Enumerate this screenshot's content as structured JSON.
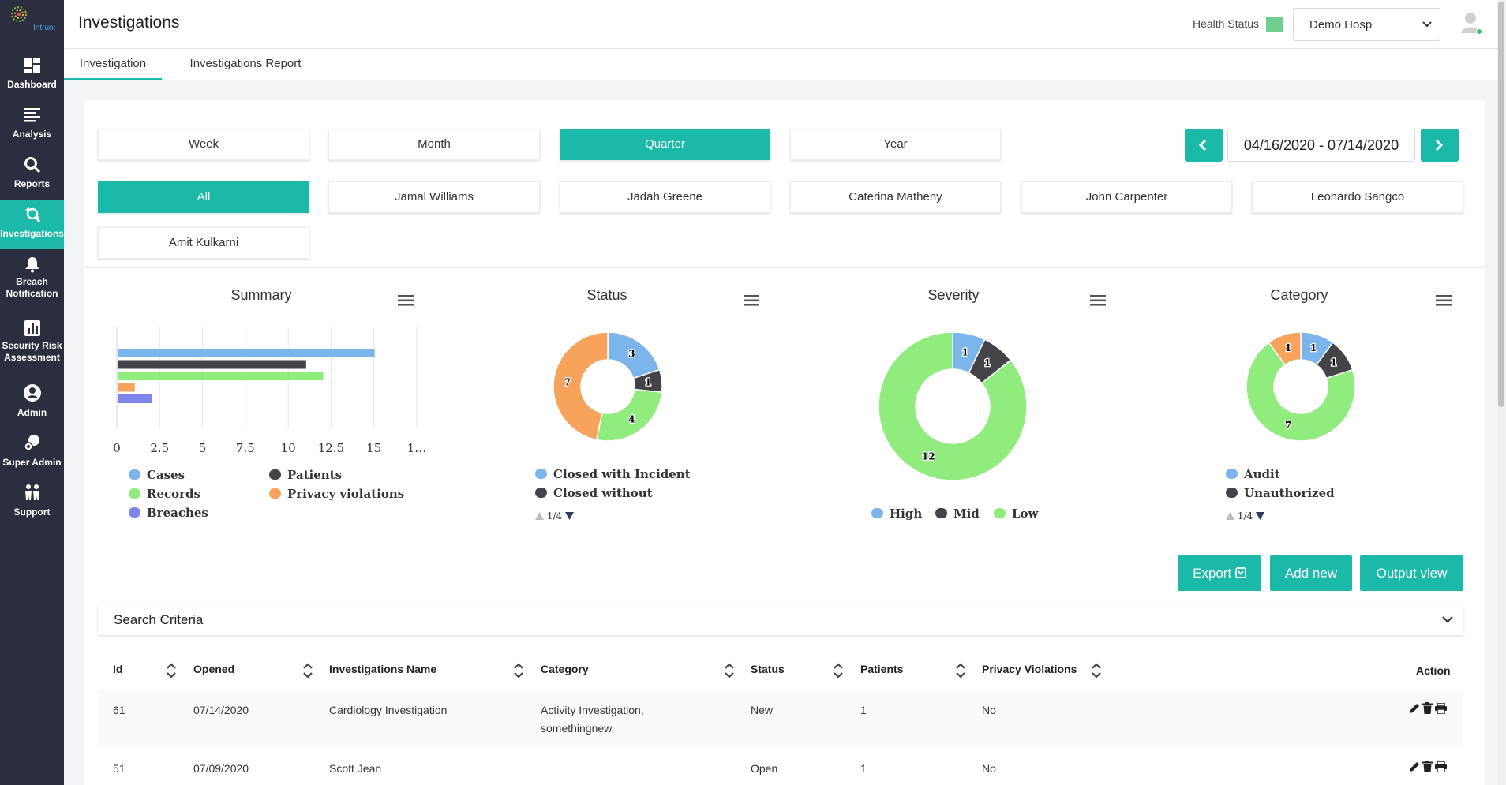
{
  "sidebar": {
    "logo_text": "Intruno",
    "items": [
      {
        "label": "Dashboard"
      },
      {
        "label": "Analysis"
      },
      {
        "label": "Reports"
      },
      {
        "label": "Investigations"
      },
      {
        "label": "Breach Notification"
      },
      {
        "label": "Security Risk Assessment"
      },
      {
        "label": "Admin"
      },
      {
        "label": "Super Admin"
      },
      {
        "label": "Support"
      }
    ]
  },
  "header": {
    "title": "Investigations",
    "health_label": "Health Status",
    "health_color": "#6fcf8f",
    "hospital": "Demo Hosp"
  },
  "tabs": [
    {
      "label": "Investigation",
      "active": true
    },
    {
      "label": "Investigations Report",
      "active": false
    }
  ],
  "periods": [
    "Week",
    "Month",
    "Quarter",
    "Year"
  ],
  "active_period": "Quarter",
  "date_range": "04/16/2020 - 07/14/2020",
  "people": [
    "All",
    "Jamal Williams",
    "Jadah Greene",
    "Caterina Matheny",
    "John Carpenter",
    "Leonardo Sangco",
    "Amit Kulkarni"
  ],
  "active_person": "All",
  "accent": "#1ab9a8",
  "chart_data": [
    {
      "type": "bar",
      "title": "Summary",
      "orientation": "horizontal",
      "categories": [
        "Cases",
        "Patients",
        "Records",
        "Privacy violations",
        "Breaches"
      ],
      "values": [
        15,
        11,
        12,
        1,
        2
      ],
      "colors": [
        "#7cb5ec",
        "#434348",
        "#90ed7d",
        "#f7a35c",
        "#8085e9"
      ],
      "xticks": [
        "0",
        "2.5",
        "5",
        "7.5",
        "10",
        "12.5",
        "15",
        "1…"
      ],
      "xlim": [
        0,
        17.5
      ]
    },
    {
      "type": "pie",
      "title": "Status",
      "donut": true,
      "labels": [
        "Closed with Incident",
        "Closed without Incident",
        "",
        ""
      ],
      "values": [
        3,
        1,
        4,
        7
      ],
      "colors": [
        "#7cb5ec",
        "#434348",
        "#90ed7d",
        "#f7a35c"
      ],
      "legend_visible": [
        "Closed with Incident",
        "Closed without"
      ],
      "legend_page": "1/4"
    },
    {
      "type": "pie",
      "title": "Severity",
      "donut": true,
      "labels": [
        "High",
        "Mid",
        "Low"
      ],
      "values": [
        1,
        1,
        12
      ],
      "colors": [
        "#7cb5ec",
        "#434348",
        "#90ed7d"
      ]
    },
    {
      "type": "pie",
      "title": "Category",
      "donut": true,
      "labels": [
        "Audit",
        "Unauthorized",
        "",
        ""
      ],
      "values": [
        1,
        1,
        7,
        1
      ],
      "colors": [
        "#7cb5ec",
        "#434348",
        "#90ed7d",
        "#f7a35c"
      ],
      "legend_visible": [
        "Audit",
        "Unauthorized"
      ],
      "legend_page": "1/4"
    }
  ],
  "actions": {
    "export": "Export",
    "add_new": "Add new",
    "output_view": "Output view"
  },
  "search_criteria": "Search Criteria",
  "table": {
    "headers": [
      "Id",
      "Opened",
      "Investigations Name",
      "Category",
      "Status",
      "Patients",
      "Privacy Violations",
      "Action"
    ],
    "rows": [
      {
        "id": "61",
        "opened": "07/14/2020",
        "name": "Cardiology Investigation",
        "category_1": "Activity Investigation,",
        "category_2": "somethingnew",
        "status": "New",
        "patients": "1",
        "privacy": "No"
      },
      {
        "id": "51",
        "opened": "07/09/2020",
        "name": "Scott Jean",
        "category_1": "",
        "category_2": "",
        "status": "Open",
        "patients": "1",
        "privacy": "No"
      }
    ]
  }
}
